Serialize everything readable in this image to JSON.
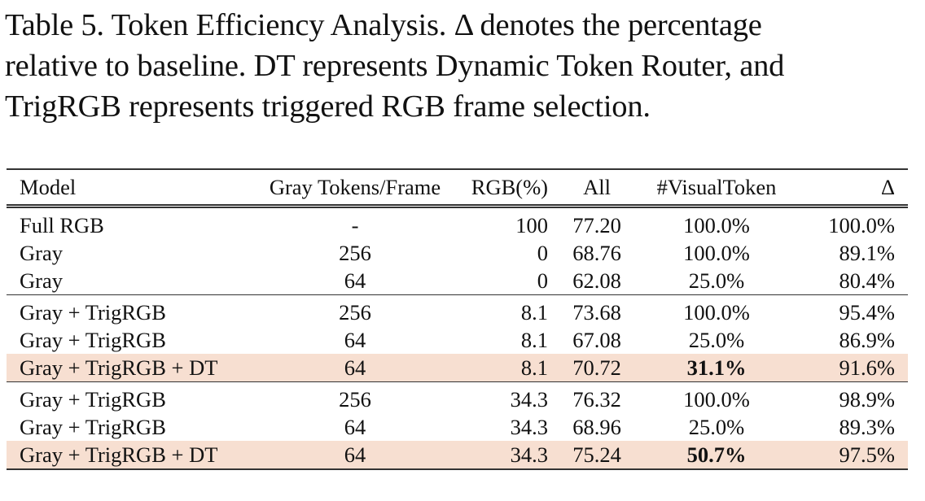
{
  "caption": {
    "lines": [
      "Table 5.  Token Efficiency Analysis.  Δ denotes the percentage",
      "relative to baseline.  DT represents Dynamic Token Router, and",
      "TrigRGB represents triggered RGB frame selection."
    ]
  },
  "table": {
    "headers": [
      "Model",
      "Gray Tokens/Frame",
      "RGB(%)",
      "All",
      "#VisualToken",
      "Δ"
    ],
    "highlight_color": "#f7dfd1",
    "groups": [
      {
        "rows": [
          {
            "model": "Full RGB",
            "gray_tokens": "-",
            "rgb": "100",
            "all": "77.20",
            "visual_token": "100.0%",
            "delta": "100.0%"
          },
          {
            "model": "Gray",
            "gray_tokens": "256",
            "rgb": "0",
            "all": "68.76",
            "visual_token": "100.0%",
            "delta": "89.1%"
          },
          {
            "model": "Gray",
            "gray_tokens": "64",
            "rgb": "0",
            "all": "62.08",
            "visual_token": "25.0%",
            "delta": "80.4%"
          }
        ]
      },
      {
        "rows": [
          {
            "model": "Gray + TrigRGB",
            "gray_tokens": "256",
            "rgb": "8.1",
            "all": "73.68",
            "visual_token": "100.0%",
            "delta": "95.4%"
          },
          {
            "model": "Gray + TrigRGB",
            "gray_tokens": "64",
            "rgb": "8.1",
            "all": "67.08",
            "visual_token": "25.0%",
            "delta": "86.9%"
          },
          {
            "model": "Gray + TrigRGB + DT",
            "gray_tokens": "64",
            "rgb": "8.1",
            "all": "70.72",
            "visual_token": "31.1%",
            "delta": "91.6%",
            "highlight": true,
            "bold_visual_token": true
          }
        ]
      },
      {
        "rows": [
          {
            "model": "Gray + TrigRGB",
            "gray_tokens": "256",
            "rgb": "34.3",
            "all": "76.32",
            "visual_token": "100.0%",
            "delta": "98.9%"
          },
          {
            "model": "Gray + TrigRGB",
            "gray_tokens": "64",
            "rgb": "34.3",
            "all": "68.96",
            "visual_token": "25.0%",
            "delta": "89.3%"
          },
          {
            "model": "Gray + TrigRGB + DT",
            "gray_tokens": "64",
            "rgb": "34.3",
            "all": "75.24",
            "visual_token": "50.7%",
            "delta": "97.5%",
            "highlight": true,
            "bold_visual_token": true
          }
        ]
      }
    ]
  }
}
